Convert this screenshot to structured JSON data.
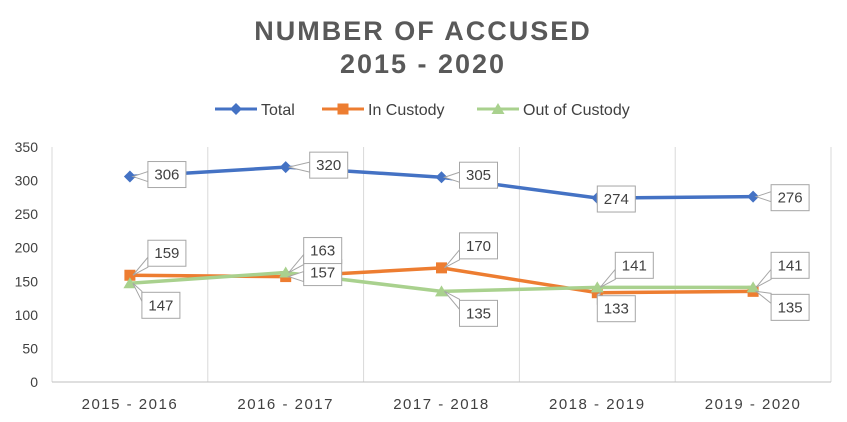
{
  "chart_data": {
    "type": "line",
    "title_lines": [
      "NUMBER OF ACCUSED",
      "2015 - 2020"
    ],
    "categories": [
      "2015 - 2016",
      "2016 - 2017",
      "2017 - 2018",
      "2018 - 2019",
      "2019 - 2020"
    ],
    "ylim": [
      0,
      350
    ],
    "yticks": [
      0,
      50,
      100,
      150,
      200,
      250,
      300,
      350
    ],
    "grid": "vertical separators between categories",
    "legend_position": "top",
    "series": [
      {
        "name": "Total",
        "color": "#4472C4",
        "marker": "diamond",
        "values": [
          306,
          320,
          305,
          274,
          276
        ]
      },
      {
        "name": "In Custody",
        "color": "#ED7D31",
        "marker": "square",
        "values": [
          159,
          157,
          170,
          133,
          135
        ]
      },
      {
        "name": "Out of Custody",
        "color": "#A9D18E",
        "marker": "triangle",
        "values": [
          147,
          163,
          135,
          141,
          141
        ]
      }
    ]
  }
}
